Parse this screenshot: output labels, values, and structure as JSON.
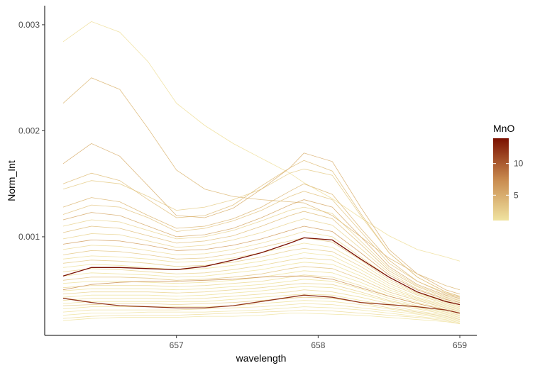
{
  "chart_data": {
    "type": "line",
    "title": "",
    "xlabel": "wavelength",
    "ylabel": "Norm_Int",
    "x": [
      656.2,
      656.4,
      656.6,
      656.8,
      657.0,
      657.2,
      657.4,
      657.6,
      657.8,
      657.9,
      658.1,
      658.3,
      658.5,
      658.7,
      658.9,
      659.0
    ],
    "x_ticks": [
      "657",
      "658",
      "659"
    ],
    "y_ticks": [
      "0.001",
      "0.002",
      "0.003"
    ],
    "xlim": [
      656.07,
      659.12
    ],
    "ylim": [
      7e-05,
      0.00318
    ],
    "grid": false,
    "legend": {
      "title": "MnO",
      "type": "colorbar",
      "placement": "right",
      "labels": [
        "5",
        "10"
      ],
      "range": [
        1.0,
        14.0
      ],
      "color_low": "#f0e3a0",
      "color_mid": "#c88a4e",
      "color_high": "#7b1000"
    },
    "series": [
      {
        "mno": 1.2,
        "values": [
          0.00284,
          0.00303,
          0.00293,
          0.00265,
          0.00226,
          0.00205,
          0.00188,
          0.00174,
          0.0016,
          0.00151,
          0.00136,
          0.00118,
          0.00101,
          0.00088,
          0.00081,
          0.00077
        ]
      },
      {
        "mno": 4.0,
        "values": [
          0.00226,
          0.0025,
          0.00239,
          0.00202,
          0.00163,
          0.00145,
          0.00138,
          0.00135,
          0.00133,
          0.00132,
          0.0012,
          0.001,
          0.0008,
          0.00065,
          0.00054,
          0.0005
        ]
      },
      {
        "mno": 4.5,
        "values": [
          0.00169,
          0.00188,
          0.00176,
          0.00148,
          0.0012,
          0.00118,
          0.00127,
          0.00145,
          0.00165,
          0.00179,
          0.00171,
          0.00128,
          0.00088,
          0.00065,
          0.0005,
          0.00046
        ]
      },
      {
        "mno": 3.5,
        "values": [
          0.0015,
          0.0016,
          0.00153,
          0.00135,
          0.00118,
          0.0012,
          0.0013,
          0.00148,
          0.00165,
          0.00172,
          0.00162,
          0.00122,
          0.00085,
          0.00062,
          0.00048,
          0.00044
        ]
      },
      {
        "mno": 2.5,
        "values": [
          0.00145,
          0.00153,
          0.0015,
          0.00138,
          0.00125,
          0.00128,
          0.00135,
          0.00145,
          0.0016,
          0.00164,
          0.00158,
          0.0012,
          0.00085,
          0.00062,
          0.00048,
          0.00044
        ]
      },
      {
        "mno": 4.0,
        "values": [
          0.00128,
          0.00137,
          0.00133,
          0.0012,
          0.00108,
          0.0011,
          0.00117,
          0.00128,
          0.00143,
          0.0015,
          0.0014,
          0.00108,
          0.00078,
          0.00058,
          0.00047,
          0.00043
        ]
      },
      {
        "mno": 3.0,
        "values": [
          0.00121,
          0.0013,
          0.00128,
          0.00118,
          0.00105,
          0.00108,
          0.00115,
          0.00125,
          0.00138,
          0.00143,
          0.00135,
          0.00105,
          0.00075,
          0.00058,
          0.00046,
          0.00043
        ]
      },
      {
        "mno": 5.0,
        "values": [
          0.00116,
          0.00123,
          0.0012,
          0.0011,
          0.001,
          0.00102,
          0.00108,
          0.00118,
          0.0013,
          0.00135,
          0.00128,
          0.001,
          0.00072,
          0.00055,
          0.00045,
          0.00042
        ]
      },
      {
        "mno": 2.0,
        "values": [
          0.0011,
          0.00116,
          0.00114,
          0.00106,
          0.00098,
          0.001,
          0.00106,
          0.00115,
          0.00125,
          0.00128,
          0.00122,
          0.00096,
          0.0007,
          0.00054,
          0.00044,
          0.00041
        ]
      },
      {
        "mno": 3.5,
        "values": [
          0.00104,
          0.0011,
          0.00108,
          0.00101,
          0.00094,
          0.00096,
          0.00101,
          0.0011,
          0.0012,
          0.00124,
          0.00117,
          0.00093,
          0.00068,
          0.00053,
          0.00043,
          0.0004
        ]
      },
      {
        "mno": 2.0,
        "values": [
          0.00098,
          0.00103,
          0.00102,
          0.00096,
          0.0009,
          0.00092,
          0.00097,
          0.00104,
          0.00113,
          0.00117,
          0.00111,
          0.00089,
          0.00066,
          0.00051,
          0.00042,
          0.00039
        ]
      },
      {
        "mno": 6.0,
        "values": [
          0.00093,
          0.00097,
          0.00096,
          0.00092,
          0.00087,
          0.00088,
          0.00092,
          0.00098,
          0.00106,
          0.0011,
          0.00105,
          0.00085,
          0.00064,
          0.0005,
          0.00041,
          0.00038
        ]
      },
      {
        "mno": 1.5,
        "values": [
          0.00088,
          0.00092,
          0.00091,
          0.00087,
          0.00083,
          0.00084,
          0.00088,
          0.00094,
          0.00101,
          0.00105,
          0.001,
          0.00081,
          0.00062,
          0.00048,
          0.0004,
          0.00037
        ]
      },
      {
        "mno": 3.0,
        "values": [
          0.00083,
          0.00087,
          0.00086,
          0.00083,
          0.00079,
          0.0008,
          0.00084,
          0.0009,
          0.00096,
          0.00099,
          0.00095,
          0.00078,
          0.0006,
          0.00047,
          0.00039,
          0.00036
        ]
      },
      {
        "mno": 1.2,
        "values": [
          0.00079,
          0.00082,
          0.00081,
          0.00079,
          0.00076,
          0.00077,
          0.0008,
          0.00085,
          0.00091,
          0.00094,
          0.0009,
          0.00075,
          0.00058,
          0.00046,
          0.00038,
          0.00035
        ]
      },
      {
        "mno": 2.5,
        "values": [
          0.00075,
          0.00078,
          0.00077,
          0.00075,
          0.00072,
          0.00073,
          0.00076,
          0.00081,
          0.00087,
          0.00089,
          0.00086,
          0.00072,
          0.00056,
          0.00045,
          0.00037,
          0.00034
        ]
      },
      {
        "mno": 1.0,
        "values": [
          0.00071,
          0.00074,
          0.00073,
          0.00071,
          0.00069,
          0.0007,
          0.00073,
          0.00077,
          0.00082,
          0.00085,
          0.00082,
          0.00069,
          0.00054,
          0.00043,
          0.00036,
          0.00033
        ]
      },
      {
        "mno": 14.0,
        "values": [
          0.00063,
          0.00071,
          0.00071,
          0.0007,
          0.00069,
          0.00072,
          0.00078,
          0.00085,
          0.00094,
          0.00099,
          0.00097,
          0.00079,
          0.00062,
          0.00048,
          0.00039,
          0.00036
        ]
      },
      {
        "mno": 2.0,
        "values": [
          0.00067,
          0.0007,
          0.00069,
          0.00067,
          0.00065,
          0.00066,
          0.00069,
          0.00073,
          0.00078,
          0.0008,
          0.00078,
          0.00066,
          0.00052,
          0.00042,
          0.00035,
          0.00032
        ]
      },
      {
        "mno": 1.0,
        "values": [
          0.00063,
          0.00066,
          0.00065,
          0.00064,
          0.00062,
          0.00063,
          0.00066,
          0.00069,
          0.00074,
          0.00076,
          0.00074,
          0.00063,
          0.0005,
          0.00041,
          0.00034,
          0.00031
        ]
      },
      {
        "mno": 3.0,
        "values": [
          0.00059,
          0.00062,
          0.00062,
          0.00061,
          0.00059,
          0.0006,
          0.00062,
          0.00065,
          0.0007,
          0.00072,
          0.0007,
          0.0006,
          0.00048,
          0.0004,
          0.00033,
          0.0003
        ]
      },
      {
        "mno": 1.0,
        "values": [
          0.00056,
          0.00058,
          0.00058,
          0.00057,
          0.00056,
          0.00057,
          0.00059,
          0.00062,
          0.00066,
          0.00068,
          0.00066,
          0.00057,
          0.00046,
          0.00038,
          0.00032,
          0.00029
        ]
      },
      {
        "mno": 7.0,
        "values": [
          0.0005,
          0.00055,
          0.00057,
          0.00058,
          0.00058,
          0.00059,
          0.0006,
          0.00062,
          0.00063,
          0.00063,
          0.0006,
          0.00052,
          0.00044,
          0.00037,
          0.00031,
          0.00028
        ]
      },
      {
        "mno": 1.5,
        "values": [
          0.00052,
          0.00054,
          0.00054,
          0.00054,
          0.00053,
          0.00054,
          0.00056,
          0.00058,
          0.00062,
          0.00064,
          0.00062,
          0.00054,
          0.00044,
          0.00037,
          0.00031,
          0.00028
        ]
      },
      {
        "mno": 1.0,
        "values": [
          0.00049,
          0.00051,
          0.00051,
          0.00051,
          0.0005,
          0.00051,
          0.00053,
          0.00055,
          0.00058,
          0.0006,
          0.00058,
          0.00051,
          0.00042,
          0.00035,
          0.0003,
          0.00027
        ]
      },
      {
        "mno": 2.0,
        "values": [
          0.00046,
          0.00048,
          0.00048,
          0.00048,
          0.00047,
          0.00048,
          0.0005,
          0.00052,
          0.00055,
          0.00056,
          0.00055,
          0.00048,
          0.0004,
          0.00034,
          0.00029,
          0.00026
        ]
      },
      {
        "mno": 1.0,
        "values": [
          0.00043,
          0.00045,
          0.00045,
          0.00045,
          0.00044,
          0.00045,
          0.00047,
          0.00049,
          0.00052,
          0.00053,
          0.00052,
          0.00046,
          0.00039,
          0.00033,
          0.00028,
          0.00025
        ]
      },
      {
        "mno": 12.0,
        "values": [
          0.00042,
          0.00038,
          0.00035,
          0.00034,
          0.00033,
          0.00033,
          0.00035,
          0.00039,
          0.00043,
          0.00045,
          0.00043,
          0.00038,
          0.00036,
          0.00034,
          0.00031,
          0.00028
        ]
      },
      {
        "mno": 1.5,
        "values": [
          0.0004,
          0.00042,
          0.00042,
          0.00042,
          0.00041,
          0.00042,
          0.00044,
          0.00046,
          0.00048,
          0.0005,
          0.00048,
          0.00043,
          0.00037,
          0.00032,
          0.00027,
          0.00024
        ]
      },
      {
        "mno": 1.0,
        "values": [
          0.00037,
          0.00039,
          0.00039,
          0.00039,
          0.00039,
          0.00039,
          0.00041,
          0.00043,
          0.00045,
          0.00046,
          0.00045,
          0.0004,
          0.00035,
          0.0003,
          0.00026,
          0.00023
        ]
      },
      {
        "mno": 2.5,
        "values": [
          0.00035,
          0.00036,
          0.00037,
          0.00037,
          0.00036,
          0.00037,
          0.00038,
          0.0004,
          0.00042,
          0.00043,
          0.00042,
          0.00038,
          0.00033,
          0.00029,
          0.00025,
          0.00022
        ]
      },
      {
        "mno": 1.0,
        "values": [
          0.00032,
          0.00034,
          0.00034,
          0.00034,
          0.00034,
          0.00034,
          0.00035,
          0.00037,
          0.00039,
          0.0004,
          0.00039,
          0.00036,
          0.00032,
          0.00028,
          0.00024,
          0.00021
        ]
      },
      {
        "mno": 1.2,
        "values": [
          0.00029,
          0.00031,
          0.00031,
          0.00031,
          0.00031,
          0.00032,
          0.00033,
          0.00034,
          0.00036,
          0.00037,
          0.00036,
          0.00033,
          0.0003,
          0.00027,
          0.00023,
          0.0002
        ]
      },
      {
        "mno": 1.0,
        "values": [
          0.00026,
          0.00028,
          0.00028,
          0.00029,
          0.00029,
          0.00029,
          0.0003,
          0.00031,
          0.00033,
          0.00034,
          0.00033,
          0.00031,
          0.00028,
          0.00025,
          0.00022,
          0.00019
        ]
      },
      {
        "mno": 1.5,
        "values": [
          0.00023,
          0.00025,
          0.00026,
          0.00026,
          0.00026,
          0.00027,
          0.00028,
          0.00029,
          0.0003,
          0.00031,
          0.0003,
          0.00028,
          0.00026,
          0.00024,
          0.00021,
          0.00018
        ]
      },
      {
        "mno": 1.0,
        "values": [
          0.00021,
          0.00023,
          0.00024,
          0.00024,
          0.00024,
          0.00025,
          0.00025,
          0.00026,
          0.00028,
          0.00028,
          0.00027,
          0.00026,
          0.00024,
          0.00022,
          0.0002,
          0.00018
        ]
      }
    ]
  }
}
